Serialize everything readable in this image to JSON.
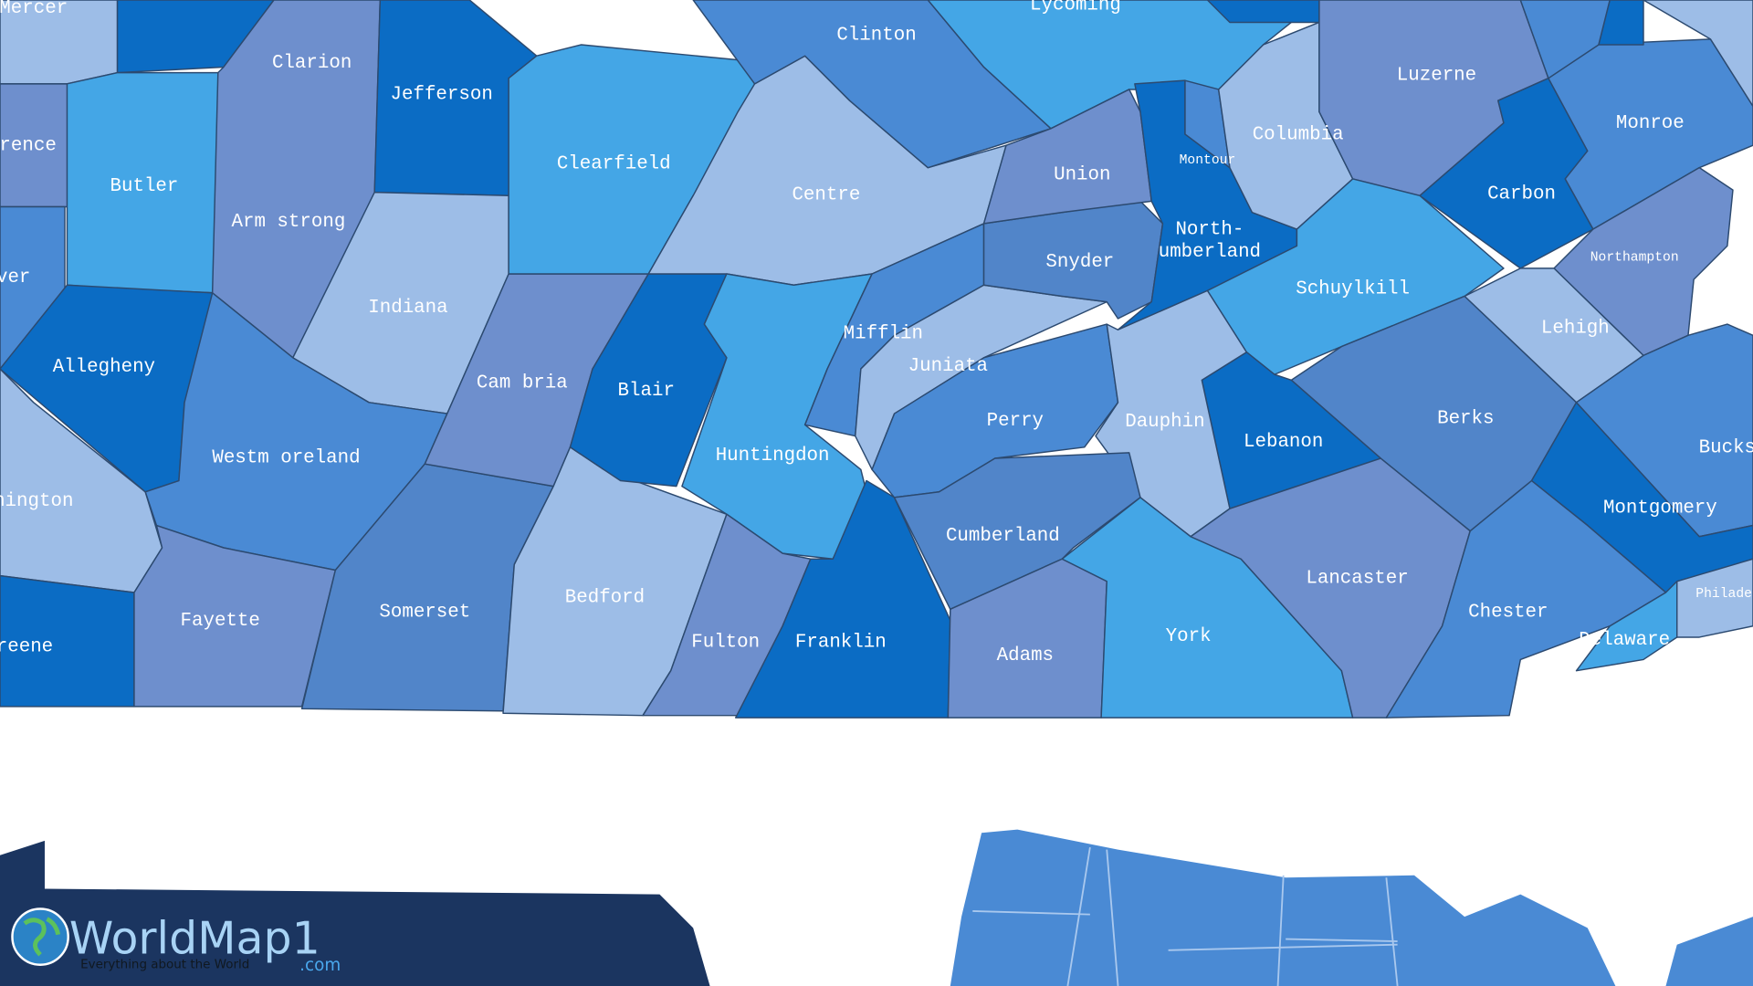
{
  "counties": [
    "Mercer",
    "rence",
    "ver",
    "hington",
    "reene",
    "Clarion",
    "Jefferson",
    "Butler",
    "Arm strong",
    "Indiana",
    "Allegheny",
    "Westm oreland",
    "Fayette",
    "Somerset",
    "Cam bria",
    "Bedford",
    "Blair",
    "Clearfield",
    "Centre",
    "Clinton",
    "Lycoming",
    "Huntingdon",
    "Fulton",
    "Franklin",
    "Mifflin",
    "Juniata",
    "Perry",
    "Snyder",
    "Union",
    "Montour",
    "North-",
    "umberland",
    "Columbia",
    "Luzerne",
    "Carbon",
    "Monroe",
    "Northampton",
    "Lehigh",
    "Schuylkill",
    "Bucks",
    "Berks",
    "Lebanon",
    "Dauphin",
    "Cumberland",
    "Adams",
    "York",
    "Lancaster",
    "Montgomery",
    "Chester",
    "Delaware",
    "Philade"
  ],
  "logo": {
    "name": "WorldMap1",
    "domain": ".com",
    "tagline": "Everything about the World"
  }
}
